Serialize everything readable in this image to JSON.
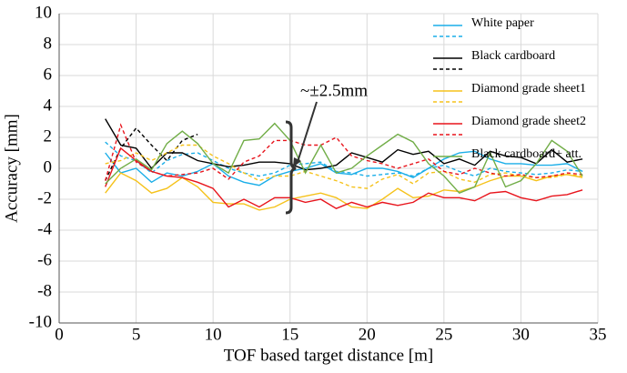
{
  "chart_data": {
    "type": "line",
    "xlabel": "TOF based target distance [m]",
    "ylabel": "Accuracy [mm]",
    "annotation": "~±2.5mm",
    "xlim": [
      0,
      35
    ],
    "xticks": [
      0,
      5,
      10,
      15,
      20,
      25,
      30,
      35
    ],
    "ylim": [
      -10,
      10
    ],
    "yticks": [
      -10,
      -8,
      -6,
      -4,
      -2,
      0,
      2,
      4,
      6,
      8,
      10
    ],
    "grid": true,
    "legend": "upper right",
    "x": [
      3,
      4,
      5,
      6,
      7,
      8,
      9,
      10,
      11,
      12,
      13,
      14,
      15,
      16,
      17,
      18,
      19,
      20,
      21,
      22,
      23,
      24,
      25,
      26,
      27,
      28,
      29,
      30,
      31,
      32,
      33,
      34
    ],
    "series": [
      {
        "name": "White paper",
        "color": "#1aaee8",
        "values": [
          1.0,
          -0.3,
          0.0,
          -0.9,
          -0.3,
          -0.5,
          -0.2,
          0.3,
          -0.5,
          -0.9,
          -1.1,
          -0.5,
          -0.2,
          0.0,
          0.3,
          -0.3,
          -0.4,
          0.0,
          0.0,
          -0.2,
          -0.6,
          0.0,
          0.6,
          1.0,
          1.1,
          0.6,
          0.3,
          0.3,
          0.2,
          0.2,
          0.3,
          -0.2
        ],
        "dashed_values": [
          1.7,
          0.8,
          0.5,
          -0.3,
          0.5,
          0.9,
          1.0,
          0.5,
          0.0,
          -0.3,
          -0.5,
          -0.3,
          0.2,
          0.3,
          0.4,
          -0.2,
          -0.3,
          -0.5,
          -0.4,
          -0.3,
          -0.5,
          0.0,
          0.2,
          -0.2,
          -0.5,
          0.0,
          -0.2,
          -0.3,
          -0.4,
          -0.3,
          -0.1,
          -0.2
        ]
      },
      {
        "name": "Black cardboard",
        "color": "#000000",
        "values": [
          3.2,
          1.5,
          1.3,
          0.0,
          1.0,
          1.0,
          0.5,
          0.3,
          0.1,
          0.2,
          0.4,
          0.4,
          0.3,
          -0.1,
          0.0,
          0.2,
          1.0,
          0.7,
          0.4,
          1.2,
          0.9,
          1.1,
          0.3,
          0.6,
          0.2,
          1.1,
          0.8,
          0.7,
          0.3,
          1.2,
          0.4,
          0.6
        ],
        "dashed_values": [
          -0.8,
          1.3,
          2.6,
          1.5,
          0.5,
          1.8,
          2.2,
          null,
          null,
          null,
          null,
          null,
          null,
          null,
          null,
          null,
          null,
          null,
          null,
          null,
          null,
          null,
          null,
          null,
          null,
          null,
          null,
          null,
          null,
          null,
          null,
          null
        ]
      },
      {
        "name": "Diamond grade sheet1",
        "color": "#f5c21b",
        "values": [
          -1.6,
          -0.3,
          -0.8,
          -1.6,
          -1.3,
          -0.6,
          -1.2,
          -2.2,
          -2.3,
          -2.3,
          -2.7,
          -2.5,
          -2.0,
          -1.8,
          -1.6,
          -1.9,
          -2.5,
          -2.6,
          -2.0,
          -1.3,
          -1.9,
          -1.8,
          -1.4,
          -1.5,
          -1.2,
          -0.8,
          -0.5,
          -0.5,
          -0.8,
          -0.5,
          -0.4,
          -0.6
        ],
        "dashed_values": [
          0.3,
          0.5,
          1.0,
          0.5,
          1.0,
          1.5,
          1.5,
          0.8,
          0.3,
          -0.3,
          -0.8,
          -0.5,
          -0.5,
          -0.2,
          -0.5,
          -0.8,
          -1.2,
          -1.3,
          -0.7,
          -0.4,
          -1.0,
          -0.3,
          -0.2,
          -0.7,
          -0.9,
          -0.4,
          -0.3,
          -0.5,
          -0.6,
          -0.6,
          -0.4,
          -0.5
        ]
      },
      {
        "name": "Diamond grade sheet2",
        "color": "#e8141c",
        "values": [
          -1.2,
          1.3,
          0.5,
          -0.2,
          -0.5,
          -0.6,
          -0.9,
          -1.3,
          -2.5,
          -2.0,
          -2.5,
          -1.9,
          -1.9,
          -2.2,
          -2.0,
          -2.6,
          -2.2,
          -2.5,
          -2.2,
          -2.4,
          -2.2,
          -1.6,
          -1.9,
          -1.9,
          -2.1,
          -1.6,
          -1.5,
          -1.9,
          -2.1,
          -1.8,
          -1.7,
          -1.4
        ],
        "dashed_values": [
          -0.8,
          2.8,
          0.4,
          -0.2,
          -0.5,
          -0.4,
          -0.3,
          0.0,
          -0.7,
          0.4,
          0.8,
          1.8,
          1.8,
          1.5,
          1.5,
          2.0,
          0.8,
          0.5,
          0.3,
          0.0,
          0.3,
          0.6,
          -0.2,
          -0.4,
          0.0,
          -0.3,
          -0.5,
          -0.4,
          -0.6,
          -0.5,
          -0.3,
          -0.4
        ]
      },
      {
        "name": "Black cardboard+ att.",
        "color": "#71ad47",
        "values": [
          -1.0,
          0.0,
          0.6,
          -0.1,
          1.6,
          2.4,
          1.6,
          0.3,
          -0.3,
          1.8,
          1.9,
          2.9,
          1.8,
          -0.3,
          1.5,
          -0.3,
          0.0,
          0.8,
          1.5,
          2.2,
          1.7,
          0.3,
          -0.5,
          -1.6,
          -1.2,
          1.0,
          -1.2,
          -0.8,
          0.3,
          1.8,
          1.1,
          -0.5
        ]
      }
    ]
  }
}
